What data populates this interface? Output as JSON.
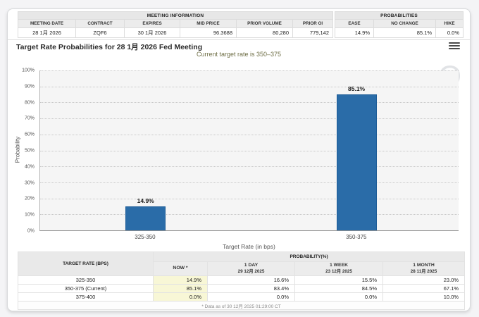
{
  "meeting_info": {
    "title": "MEETING INFORMATION",
    "columns": [
      "MEETING DATE",
      "CONTRACT",
      "EXPIRES",
      "MID PRICE",
      "PRIOR VOLUME",
      "PRIOR OI"
    ],
    "values": [
      "28 1月 2026",
      "ZQF6",
      "30 1月 2026",
      "96.3688",
      "80,280",
      "779,142"
    ]
  },
  "probabilities_info": {
    "title": "PROBABILITIES",
    "columns": [
      "EASE",
      "NO CHANGE",
      "HIKE"
    ],
    "values": [
      "14.9%",
      "85.1%",
      "0.0%"
    ]
  },
  "chart": {
    "title": "Target Rate Probabilities for 28 1月 2026 Fed Meeting",
    "subtitle": "Current target rate is 350–375",
    "watermark": "Q"
  },
  "chart_data": {
    "type": "bar",
    "categories": [
      "325-350",
      "350-375"
    ],
    "values": [
      14.9,
      85.1
    ],
    "value_labels": [
      "14.9%",
      "85.1%"
    ],
    "title": "Target Rate Probabilities for 28 1月 2026 Fed Meeting",
    "subtitle": "Current target rate is 350–375",
    "xlabel": "Target Rate (in bps)",
    "ylabel": "Probability",
    "ylim": [
      0,
      100
    ],
    "ytick_labels_top_to_bottom": [
      "100%",
      "90%",
      "80%",
      "70%",
      "60%",
      "50%",
      "40%",
      "30%",
      "20%",
      "10%",
      "0%"
    ],
    "grid": "horizontal-dotted",
    "legend": "none",
    "bar_color": "#2a6ca8",
    "plot_background": "#f5f5f5"
  },
  "bottom_table": {
    "rate_header": "TARGET RATE (BPS)",
    "group_header": "PROBABILITY(%)",
    "columns": [
      {
        "label": "NOW *",
        "date": ""
      },
      {
        "label": "1 DAY",
        "date": "29 12月 2025"
      },
      {
        "label": "1 WEEK",
        "date": "23 12月 2025"
      },
      {
        "label": "1 MONTH",
        "date": "28 11月 2025"
      }
    ],
    "rows": [
      {
        "rate": "325-350",
        "now": "14.9%",
        "day": "16.6%",
        "week": "15.5%",
        "month": "23.0%"
      },
      {
        "rate": "350-375 (Current)",
        "now": "85.1%",
        "day": "83.4%",
        "week": "84.5%",
        "month": "67.1%"
      },
      {
        "rate": "375-400",
        "now": "0.0%",
        "day": "0.0%",
        "week": "0.0%",
        "month": "10.0%"
      }
    ],
    "footnote": "* Data as of 30 12月 2025 01:29:00 CT"
  },
  "colors": {
    "bar": "#2a6ca8",
    "now_column_highlight": "#f8f7d6",
    "subtitle_text": "#6e6e45",
    "header_background": "#ececec",
    "page_background": "#f4f4f6"
  }
}
